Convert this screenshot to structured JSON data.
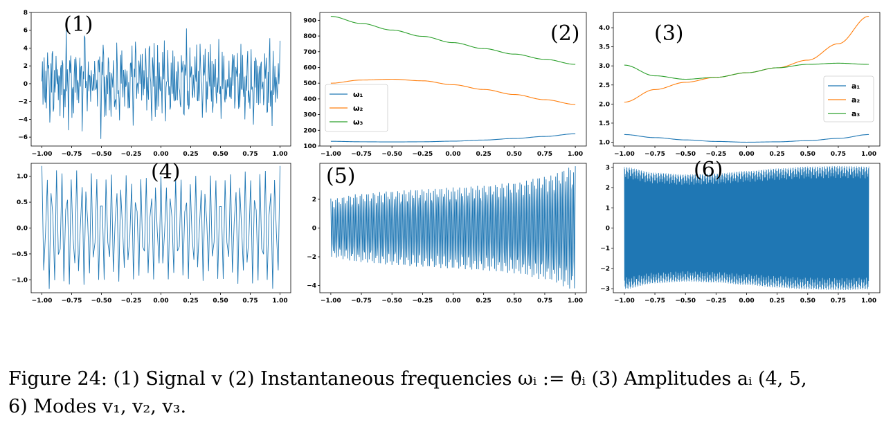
{
  "chart_data": [
    {
      "type": "line",
      "label": "(1)",
      "xlim": [
        -1,
        1.0
      ],
      "ylim": [
        -7,
        8
      ],
      "xticks": [
        -1.0,
        -0.75,
        -0.5,
        -0.25,
        0.0,
        0.25,
        0.5,
        0.75,
        1.0
      ],
      "xticklabels": [
        "−1.00",
        "−0.75",
        "−0.50",
        "−0.25",
        "0.00",
        "0.25",
        "0.50",
        "0.75",
        "1.00"
      ],
      "yticks": [
        -6,
        -4,
        -2,
        0,
        2,
        4,
        6,
        8
      ],
      "yticklabels": [
        "−6",
        "−4",
        "−2",
        "0",
        "2",
        "4",
        "6",
        "8"
      ],
      "series": [
        {
          "signal": "sum of modes",
          "color": "#1f77b4",
          "envelope": [
            -5,
            6
          ]
        }
      ]
    },
    {
      "type": "line",
      "label": "(2)",
      "xlim": [
        -1,
        1.0
      ],
      "ylim": [
        100,
        950
      ],
      "xticks": [
        -1.0,
        -0.75,
        -0.5,
        -0.25,
        0.0,
        0.25,
        0.5,
        0.75,
        1.0
      ],
      "xticklabels": [
        "−1.00",
        "−0.75",
        "−0.50",
        "−0.25",
        "0.00",
        "0.25",
        "0.50",
        "0.75",
        "1.00"
      ],
      "yticks": [
        100,
        200,
        300,
        400,
        500,
        600,
        700,
        800,
        900
      ],
      "yticklabels": [
        "100",
        "200",
        "300",
        "400",
        "500",
        "600",
        "700",
        "800",
        "900"
      ],
      "legend": "middle-left",
      "series": [
        {
          "name": "ω₁",
          "color": "#1f77b4",
          "x": [
            -1.0,
            -0.75,
            -0.5,
            -0.25,
            0.0,
            0.25,
            0.5,
            0.75,
            1.0
          ],
          "values": [
            130,
            127,
            126,
            127,
            131,
            138,
            148,
            161,
            178
          ]
        },
        {
          "name": "ω₂",
          "color": "#ff7f0e",
          "x": [
            -1.0,
            -0.75,
            -0.5,
            -0.25,
            0.0,
            0.25,
            0.5,
            0.75,
            1.0
          ],
          "values": [
            500,
            520,
            525,
            515,
            490,
            460,
            428,
            395,
            365
          ]
        },
        {
          "name": "ω₃",
          "color": "#2ca02c",
          "x": [
            -1.0,
            -0.75,
            -0.5,
            -0.25,
            0.0,
            0.25,
            0.5,
            0.75,
            1.0
          ],
          "values": [
            925,
            880,
            838,
            798,
            758,
            720,
            685,
            652,
            620
          ]
        }
      ]
    },
    {
      "type": "line",
      "label": "(3)",
      "xlim": [
        -1,
        1.0
      ],
      "ylim": [
        0.9,
        4.4
      ],
      "xticks": [
        -1.0,
        -0.75,
        -0.5,
        -0.25,
        0.0,
        0.25,
        0.5,
        0.75,
        1.0
      ],
      "xticklabels": [
        "−1.00",
        "−0.75",
        "−0.50",
        "−0.25",
        "0.00",
        "0.25",
        "0.50",
        "0.75",
        "1.00"
      ],
      "yticks": [
        1.0,
        1.5,
        2.0,
        2.5,
        3.0,
        3.5,
        4.0
      ],
      "yticklabels": [
        "1.0",
        "1.5",
        "2.0",
        "2.5",
        "3.0",
        "3.5",
        "4.0"
      ],
      "legend": "right",
      "series": [
        {
          "name": "a₁",
          "color": "#1f77b4",
          "x": [
            -1.0,
            -0.75,
            -0.5,
            -0.25,
            0.0,
            0.25,
            0.5,
            0.75,
            1.0
          ],
          "values": [
            1.2,
            1.12,
            1.06,
            1.02,
            1.0,
            1.01,
            1.04,
            1.1,
            1.2
          ]
        },
        {
          "name": "a₂",
          "color": "#ff7f0e",
          "x": [
            -1.0,
            -0.75,
            -0.5,
            -0.25,
            0.0,
            0.25,
            0.5,
            0.75,
            1.0
          ],
          "values": [
            2.05,
            2.38,
            2.57,
            2.7,
            2.82,
            2.95,
            3.15,
            3.58,
            4.3
          ]
        },
        {
          "name": "a₃",
          "color": "#2ca02c",
          "x": [
            -1.0,
            -0.75,
            -0.5,
            -0.25,
            0.0,
            0.25,
            0.5,
            0.75,
            1.0
          ],
          "values": [
            3.02,
            2.74,
            2.65,
            2.7,
            2.82,
            2.95,
            3.04,
            3.07,
            3.04
          ]
        }
      ]
    },
    {
      "type": "line",
      "label": "(4)",
      "xlim": [
        -1,
        1.0
      ],
      "ylim": [
        -1.25,
        1.25
      ],
      "xticks": [
        -1.0,
        -0.75,
        -0.5,
        -0.25,
        0.0,
        0.25,
        0.5,
        0.75,
        1.0
      ],
      "xticklabels": [
        "−1.00",
        "−0.75",
        "−0.50",
        "−0.25",
        "0.00",
        "0.25",
        "0.50",
        "0.75",
        "1.00"
      ],
      "yticks": [
        -1.0,
        -0.5,
        0.0,
        0.5,
        1.0
      ],
      "yticklabels": [
        "−1.0",
        "−0.5",
        "0.0",
        "0.5",
        "1.0"
      ],
      "series": [
        {
          "mode": "v₁",
          "color": "#1f77b4",
          "amplitude": "a₁"
        }
      ]
    },
    {
      "type": "line",
      "label": "(5)",
      "xlim": [
        -1,
        1.0
      ],
      "ylim": [
        -4.5,
        4.5
      ],
      "xticks": [
        -1.0,
        -0.75,
        -0.5,
        -0.25,
        0.0,
        0.25,
        0.5,
        0.75,
        1.0
      ],
      "xticklabels": [
        "−1.00",
        "−0.75",
        "−0.50",
        "−0.25",
        "0.00",
        "0.25",
        "0.50",
        "0.75",
        "1.00"
      ],
      "yticks": [
        -4,
        -2,
        0,
        2
      ],
      "yticklabels": [
        "−4",
        "−2",
        "0",
        "2"
      ],
      "series": [
        {
          "mode": "v₂",
          "color": "#1f77b4",
          "amplitude": "a₂"
        }
      ]
    },
    {
      "type": "line",
      "label": "(6)",
      "xlim": [
        -1,
        1.0
      ],
      "ylim": [
        -3.2,
        3.2
      ],
      "xticks": [
        -1.0,
        -0.75,
        -0.5,
        -0.25,
        0.0,
        0.25,
        0.5,
        0.75,
        1.0
      ],
      "xticklabels": [
        "−1.00",
        "−0.75",
        "−0.50",
        "−0.25",
        "0.00",
        "0.25",
        "0.50",
        "0.75",
        "1.00"
      ],
      "yticks": [
        -3,
        -2,
        -1,
        0,
        1,
        2,
        3
      ],
      "yticklabels": [
        "−3",
        "−2",
        "−1",
        "0",
        "1",
        "2",
        "3"
      ],
      "series": [
        {
          "mode": "v₃",
          "color": "#1f77b4",
          "amplitude": "a₃"
        }
      ]
    }
  ],
  "caption": {
    "line1": "Figure 24: (1) Signal v (2) Instantaneous frequencies ωᵢ := θ̇ᵢ (3) Amplitudes aᵢ (4, 5,",
    "line2": "6) Modes v₁, v₂, v₃."
  }
}
